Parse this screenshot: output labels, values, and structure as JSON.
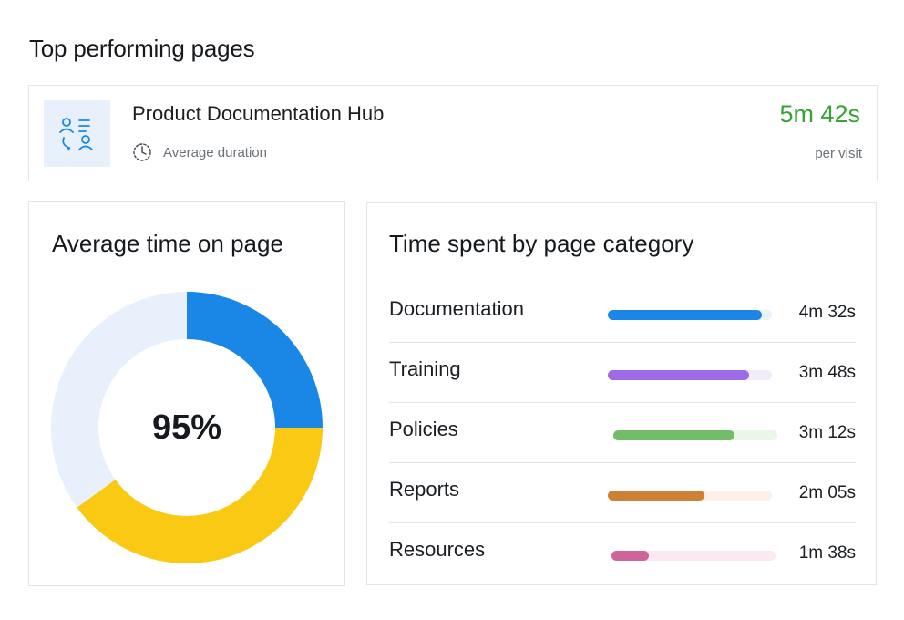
{
  "header": {
    "title": "Top performing pages"
  },
  "top_page": {
    "name": "Product Documentation Hub",
    "duration_label": "Average duration",
    "duration_value": "5m 42s",
    "duration_unit": "per visit",
    "icons": {
      "page": "user-list-icon",
      "clock": "clock-icon"
    }
  },
  "donut": {
    "title": "Average time on page",
    "center_label": "95%",
    "chart_data": {
      "type": "pie",
      "variant": "donut",
      "slices": [
        {
          "share": 0.25,
          "color": "#1a87e6"
        },
        {
          "share": 0.4,
          "color": "#f9c914"
        },
        {
          "share": 0.35,
          "color": "#e8f1fb"
        }
      ]
    }
  },
  "categories": {
    "title": "Time spent by page category",
    "chart_data": {
      "type": "bar",
      "orientation": "horizontal",
      "categories": [
        "Documentation",
        "Training",
        "Policies",
        "Reports",
        "Resources"
      ],
      "values_seconds": [
        272,
        228,
        192,
        125,
        98
      ],
      "value_labels": [
        "4m 32s",
        "3m 48s",
        "3m 12s",
        "2m 05s",
        "1m 38s"
      ],
      "fill_fraction": [
        0.94,
        0.86,
        0.74,
        0.59,
        0.23
      ],
      "colors": [
        "#1a87e6",
        "#9d6be6",
        "#72be68",
        "#cf8133",
        "#cf6499"
      ],
      "track_colors": [
        "#eaf2fb",
        "#f1ecfa",
        "#e9f6e8",
        "#fcf1e6",
        "#fbe9f2"
      ]
    }
  }
}
